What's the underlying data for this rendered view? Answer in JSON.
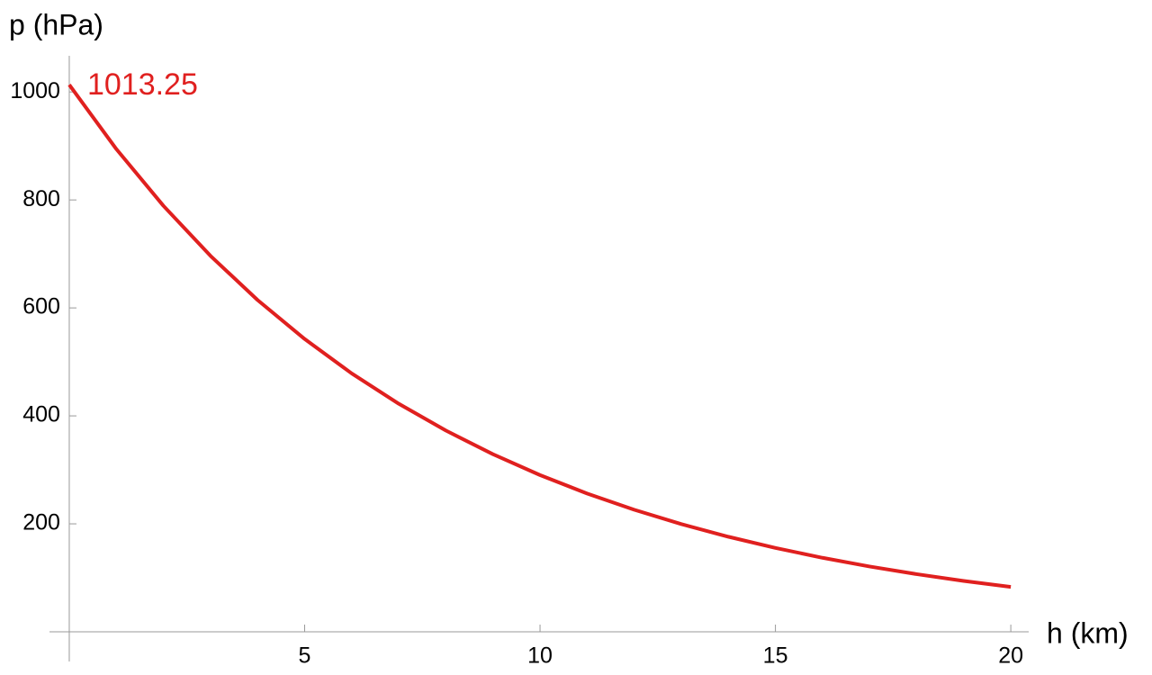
{
  "chart_data": {
    "type": "line",
    "x_label": "h (km)",
    "y_label": "p (hPa)",
    "annotation": "1013.25",
    "x": [
      0,
      1,
      2,
      3,
      4,
      5,
      6,
      7,
      8,
      9,
      10,
      11,
      12,
      13,
      14,
      15,
      16,
      17,
      18,
      19,
      20
    ],
    "series": [
      {
        "color": "#e0201f",
        "values": [
          1013.25,
          894.2,
          789.1,
          696.4,
          614.6,
          542.4,
          478.6,
          422.4,
          372.8,
          329.0,
          290.3,
          256.2,
          226.1,
          199.5,
          176.1,
          155.4,
          137.1,
          121.0,
          106.8,
          94.2,
          83.2
        ]
      }
    ],
    "xlim": [
      -0.42,
      20.38
    ],
    "ylim": [
      -55,
      1067
    ],
    "xticks": [
      5,
      10,
      15,
      20
    ],
    "yticks": [
      200,
      400,
      600,
      800,
      1000
    ],
    "grid": false
  }
}
